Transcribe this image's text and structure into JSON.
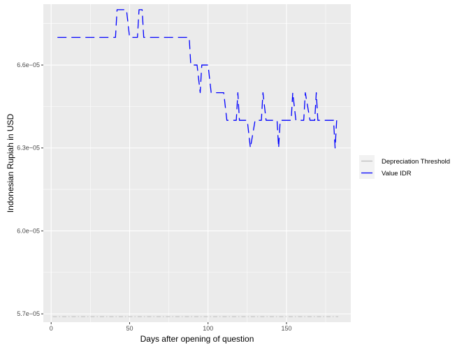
{
  "chart_data": {
    "type": "line",
    "xlabel": "Days after opening of question",
    "ylabel": "Indonesian Rupiah in USD",
    "xlim": [
      -5,
      191
    ],
    "ylim": [
      5.67e-05,
      6.82e-05
    ],
    "xticks": [
      0,
      50,
      100,
      150
    ],
    "xtick_labels": [
      "0",
      "50",
      "100",
      "150"
    ],
    "yticks": [
      5.7e-05,
      6e-05,
      6.3e-05,
      6.6e-05
    ],
    "ytick_labels": [
      "5.7e−05",
      "6.0e−05",
      "6.3e−05",
      "6.6e−05"
    ],
    "grid": true,
    "legend_position": "right",
    "series": [
      {
        "name": "Depreciation Threshold",
        "color": "#bebebe",
        "style": "dash-dot",
        "points": [
          [
            1,
            5.69e-05
          ],
          [
            183,
            5.69e-05
          ]
        ]
      },
      {
        "name": "Value IDR",
        "color": "#0000ff",
        "style": "dashed",
        "points": [
          [
            4,
            6.7e-05
          ],
          [
            41,
            6.7e-05
          ],
          [
            42,
            6.8e-05
          ],
          [
            48,
            6.8e-05
          ],
          [
            50,
            6.7e-05
          ],
          [
            55,
            6.7e-05
          ],
          [
            56,
            6.8e-05
          ],
          [
            58,
            6.8e-05
          ],
          [
            59,
            6.7e-05
          ],
          [
            88,
            6.7e-05
          ],
          [
            89,
            6.6e-05
          ],
          [
            93,
            6.6e-05
          ],
          [
            95,
            6.5e-05
          ],
          [
            96,
            6.6e-05
          ],
          [
            98,
            6.6e-05
          ],
          [
            100,
            6.6e-05
          ],
          [
            102,
            6.5e-05
          ],
          [
            110,
            6.5e-05
          ],
          [
            112,
            6.4e-05
          ],
          [
            118,
            6.4e-05
          ],
          [
            119,
            6.5e-05
          ],
          [
            120,
            6.4e-05
          ],
          [
            125,
            6.4e-05
          ],
          [
            127,
            6.3e-05
          ],
          [
            130,
            6.4e-05
          ],
          [
            134,
            6.4e-05
          ],
          [
            135,
            6.5e-05
          ],
          [
            137,
            6.4e-05
          ],
          [
            144,
            6.4e-05
          ],
          [
            145,
            6.3e-05
          ],
          [
            146,
            6.4e-05
          ],
          [
            149,
            6.4e-05
          ],
          [
            153,
            6.4e-05
          ],
          [
            154,
            6.5e-05
          ],
          [
            156,
            6.4e-05
          ],
          [
            161,
            6.4e-05
          ],
          [
            162,
            6.5e-05
          ],
          [
            165,
            6.4e-05
          ],
          [
            168,
            6.4e-05
          ],
          [
            169,
            6.5e-05
          ],
          [
            170,
            6.4e-05
          ],
          [
            180,
            6.4e-05
          ],
          [
            181,
            6.3e-05
          ],
          [
            182,
            6.4e-05
          ]
        ]
      }
    ]
  }
}
